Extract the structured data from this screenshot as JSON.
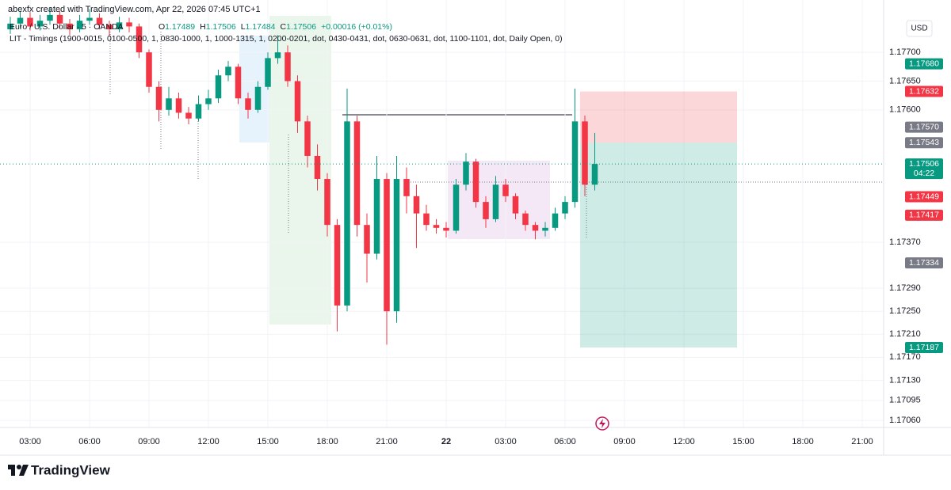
{
  "header": {
    "credit": "abexfx created with TradingView.com, Apr 22, 2026 07:45 UTC+1"
  },
  "chart_data": {
    "type": "candlestick",
    "symbol": "Euro / U.S. Dollar · 5 · OANDA",
    "ohlc_legend": [
      {
        "key": "O",
        "value": "1.17489"
      },
      {
        "key": "H",
        "value": "1.17506"
      },
      {
        "key": "L",
        "value": "1.17484"
      },
      {
        "key": "C",
        "value": "1.17506"
      },
      {
        "key": "",
        "value": "+0.00016 (+0.01%)"
      }
    ],
    "indicator": "LIT - Timings (1900-0015, 0100-0500, 1, 0830-1000, 1, 1000-1315, 1, 0200-0201, dot, 0430-0431, dot, 0630-0631, dot, 1100-1101, dot, Daily Open, 0)",
    "currency": "USD",
    "x": [
      2,
      2.5,
      3,
      3.5,
      4,
      4.5,
      5,
      5.5,
      6,
      6.5,
      7,
      7.5,
      8,
      8.5,
      9,
      9.5,
      10,
      10.5,
      11,
      11.5,
      12,
      12.5,
      13,
      13.5,
      14,
      14.5,
      15,
      15.5,
      16,
      16.5,
      17,
      17.5,
      18,
      18.5,
      19,
      19.5,
      20,
      20.5,
      21,
      21.5,
      22,
      22.5,
      23,
      23.5,
      24,
      24.5,
      25,
      25.5,
      26,
      26.5,
      27,
      27.5,
      28,
      28.5,
      29,
      29.5,
      30,
      30.5,
      31,
      31.5
    ],
    "open": [
      1.1774,
      1.1775,
      1.1776,
      1.17745,
      1.17755,
      1.17765,
      1.1775,
      1.1774,
      1.17755,
      1.1776,
      1.17748,
      1.1774,
      1.17752,
      1.17745,
      1.177,
      1.1764,
      1.176,
      1.1762,
      1.17595,
      1.17585,
      1.1761,
      1.1762,
      1.1766,
      1.17675,
      1.1762,
      1.176,
      1.1764,
      1.1769,
      1.177,
      1.1765,
      1.1758,
      1.1752,
      1.1748,
      1.174,
      1.1726,
      1.1758,
      1.174,
      1.1735,
      1.1748,
      1.1725,
      1.1748,
      1.1745,
      1.1742,
      1.174,
      1.17395,
      1.1739,
      1.1747,
      1.1751,
      1.1744,
      1.1741,
      1.1747,
      1.1745,
      1.1742,
      1.174,
      1.1739,
      1.17395,
      1.1742,
      1.1744,
      1.1758,
      1.1747
    ],
    "high": [
      1.17762,
      1.17772,
      1.1777,
      1.17765,
      1.17778,
      1.17772,
      1.17758,
      1.17765,
      1.17775,
      1.17768,
      1.17755,
      1.17762,
      1.1776,
      1.1775,
      1.17705,
      1.1765,
      1.1764,
      1.1763,
      1.17605,
      1.17625,
      1.17635,
      1.1767,
      1.17685,
      1.1768,
      1.1763,
      1.1765,
      1.177,
      1.1773,
      1.17712,
      1.1766,
      1.1759,
      1.1754,
      1.1749,
      1.1741,
      1.17637,
      1.1759,
      1.1742,
      1.1752,
      1.1749,
      1.1752,
      1.175,
      1.1747,
      1.17435,
      1.1741,
      1.17405,
      1.1748,
      1.17525,
      1.17515,
      1.1745,
      1.17485,
      1.1748,
      1.17455,
      1.17425,
      1.17405,
      1.17405,
      1.1743,
      1.1745,
      1.17637,
      1.1759,
      1.1756
    ],
    "low": [
      1.17732,
      1.17742,
      1.17738,
      1.17738,
      1.17748,
      1.17742,
      1.1773,
      1.17735,
      1.17748,
      1.1774,
      1.17728,
      1.17735,
      1.17735,
      1.1769,
      1.1763,
      1.1758,
      1.1759,
      1.17585,
      1.17575,
      1.1758,
      1.176,
      1.17612,
      1.1765,
      1.1761,
      1.17585,
      1.17595,
      1.17635,
      1.1768,
      1.1764,
      1.1756,
      1.175,
      1.1746,
      1.1738,
      1.17215,
      1.1725,
      1.1738,
      1.173,
      1.1734,
      1.17192,
      1.1723,
      1.1742,
      1.1736,
      1.1739,
      1.17385,
      1.17378,
      1.17385,
      1.1746,
      1.1743,
      1.17395,
      1.17405,
      1.1744,
      1.1741,
      1.1739,
      1.17375,
      1.1738,
      1.1739,
      1.1741,
      1.1743,
      1.1745,
      1.1746
    ],
    "close": [
      1.1775,
      1.1776,
      1.17745,
      1.17755,
      1.17765,
      1.1775,
      1.1774,
      1.17755,
      1.1776,
      1.17748,
      1.1774,
      1.17752,
      1.17745,
      1.177,
      1.1764,
      1.176,
      1.1762,
      1.17595,
      1.17585,
      1.1761,
      1.1762,
      1.1766,
      1.17675,
      1.1762,
      1.176,
      1.1764,
      1.1769,
      1.177,
      1.1765,
      1.1758,
      1.1752,
      1.1748,
      1.174,
      1.1726,
      1.1758,
      1.174,
      1.1735,
      1.1748,
      1.1725,
      1.1748,
      1.1745,
      1.1742,
      1.174,
      1.17395,
      1.1739,
      1.1747,
      1.1751,
      1.1744,
      1.1741,
      1.1747,
      1.1745,
      1.1742,
      1.174,
      1.1739,
      1.17395,
      1.1742,
      1.1744,
      1.1758,
      1.1747,
      1.17506
    ],
    "up_color": "#089981",
    "down_color": "#f23645",
    "xlim": [
      1.48,
      46.08
    ],
    "xticks": [
      {
        "value": 3,
        "label": "03:00"
      },
      {
        "value": 6,
        "label": "06:00"
      },
      {
        "value": 9,
        "label": "09:00"
      },
      {
        "value": 12,
        "label": "12:00"
      },
      {
        "value": 15,
        "label": "15:00"
      },
      {
        "value": 18,
        "label": "18:00"
      },
      {
        "value": 21,
        "label": "21:00"
      },
      {
        "value": 24,
        "label": "22"
      },
      {
        "value": 27,
        "label": "03:00"
      },
      {
        "value": 30,
        "label": "06:00"
      },
      {
        "value": 33,
        "label": "09:00"
      },
      {
        "value": 36,
        "label": "12:00"
      },
      {
        "value": 39,
        "label": "15:00"
      },
      {
        "value": 42,
        "label": "18:00"
      },
      {
        "value": 45,
        "label": "21:00"
      }
    ],
    "ylim": [
      1.17048,
      1.17791
    ],
    "yticks": [
      {
        "value": 1.177,
        "label": "1.17700"
      },
      {
        "value": 1.1765,
        "label": "1.17650"
      },
      {
        "value": 1.176,
        "label": "1.17600"
      },
      {
        "value": 1.1737,
        "label": "1.17370"
      },
      {
        "value": 1.1729,
        "label": "1.17290"
      },
      {
        "value": 1.1725,
        "label": "1.17250"
      },
      {
        "value": 1.1721,
        "label": "1.17210"
      },
      {
        "value": 1.1717,
        "label": "1.17170"
      },
      {
        "value": 1.1713,
        "label": "1.17130"
      },
      {
        "value": 1.17095,
        "label": "1.17095"
      },
      {
        "value": 1.1706,
        "label": "1.17060"
      }
    ],
    "grid": true,
    "price_labels": [
      {
        "value": 1.1768,
        "label": "1.17680",
        "color": "#089981"
      },
      {
        "value": 1.17632,
        "label": "1.17632",
        "color": "#f23645"
      },
      {
        "value": 1.1757,
        "label": "1.17570",
        "color": "#787b86"
      },
      {
        "value": 1.17543,
        "label": "1.17543",
        "color": "#787b86"
      },
      {
        "value": 1.17506,
        "label": "1.17506",
        "color": "#089981"
      },
      {
        "value": 1.17449,
        "label": "1.17449",
        "color": "#f23645"
      },
      {
        "value": 1.17417,
        "label": "1.17417",
        "color": "#f23645"
      },
      {
        "value": 1.17334,
        "label": "1.17334",
        "color": "#787b86"
      },
      {
        "value": 1.17187,
        "label": "1.17187",
        "color": "#089981"
      }
    ],
    "countdown": "04:22"
  },
  "footer": {
    "logo": "TradingView"
  }
}
